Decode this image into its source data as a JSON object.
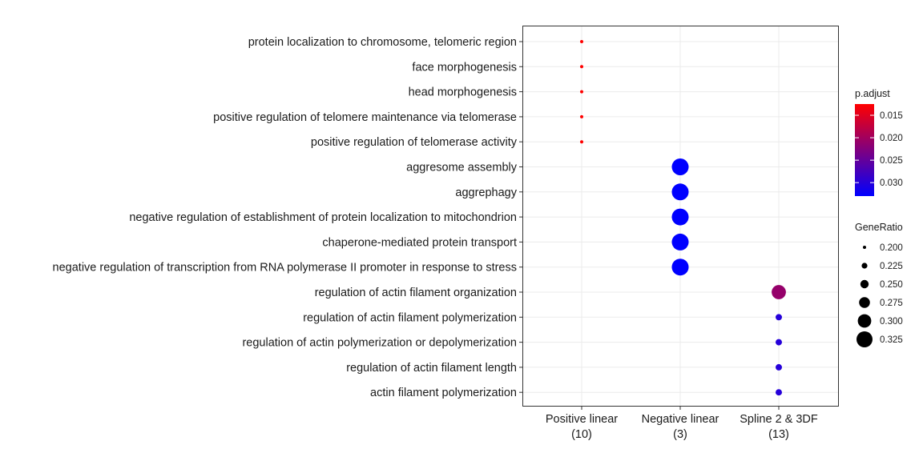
{
  "chart_data": {
    "type": "scatter",
    "title": "",
    "xlabel": "",
    "ylabel": "",
    "x_categories": [
      {
        "line1": "Positive linear",
        "line2": "(10)"
      },
      {
        "line1": "Negative linear",
        "line2": "(3)"
      },
      {
        "line1": "Spline 2 & 3DF",
        "line2": "(13)"
      }
    ],
    "y_categories": [
      "protein localization to chromosome, telomeric region",
      "face morphogenesis",
      "head morphogenesis",
      "positive regulation of telomere maintenance via telomerase",
      "positive regulation of telomerase activity",
      "aggresome assembly",
      "aggrephagy",
      "negative regulation of establishment of protein localization to mitochondrion",
      "chaperone-mediated protein transport",
      "negative regulation of transcription from RNA polymerase II promoter in response to stress",
      "regulation of actin filament organization",
      "regulation of actin filament polymerization",
      "regulation of actin polymerization or depolymerization",
      "regulation of actin filament length",
      "actin filament polymerization"
    ],
    "points": [
      {
        "x": 0,
        "y": 0,
        "gene_ratio": 0.2,
        "p_adjust": 0.0125
      },
      {
        "x": 0,
        "y": 1,
        "gene_ratio": 0.2,
        "p_adjust": 0.0125
      },
      {
        "x": 0,
        "y": 2,
        "gene_ratio": 0.2,
        "p_adjust": 0.0125
      },
      {
        "x": 0,
        "y": 3,
        "gene_ratio": 0.2,
        "p_adjust": 0.0125
      },
      {
        "x": 0,
        "y": 4,
        "gene_ratio": 0.2,
        "p_adjust": 0.0125
      },
      {
        "x": 1,
        "y": 5,
        "gene_ratio": 0.333,
        "p_adjust": 0.033
      },
      {
        "x": 1,
        "y": 6,
        "gene_ratio": 0.333,
        "p_adjust": 0.033
      },
      {
        "x": 1,
        "y": 7,
        "gene_ratio": 0.333,
        "p_adjust": 0.033
      },
      {
        "x": 1,
        "y": 8,
        "gene_ratio": 0.333,
        "p_adjust": 0.033
      },
      {
        "x": 1,
        "y": 9,
        "gene_ratio": 0.333,
        "p_adjust": 0.033
      },
      {
        "x": 2,
        "y": 10,
        "gene_ratio": 0.308,
        "p_adjust": 0.021
      },
      {
        "x": 2,
        "y": 11,
        "gene_ratio": 0.231,
        "p_adjust": 0.03
      },
      {
        "x": 2,
        "y": 12,
        "gene_ratio": 0.231,
        "p_adjust": 0.03
      },
      {
        "x": 2,
        "y": 13,
        "gene_ratio": 0.231,
        "p_adjust": 0.03
      },
      {
        "x": 2,
        "y": 14,
        "gene_ratio": 0.231,
        "p_adjust": 0.03
      }
    ],
    "size_legend": {
      "title": "GeneRatio",
      "values": [
        0.2,
        0.225,
        0.25,
        0.275,
        0.3,
        0.325
      ],
      "labels": [
        "0.200",
        "0.225",
        "0.250",
        "0.275",
        "0.300",
        "0.325"
      ]
    },
    "color_legend": {
      "title": "p.adjust",
      "range": [
        0.0125,
        0.033
      ],
      "ticks": [
        0.015,
        0.02,
        0.025,
        0.03
      ],
      "labels": [
        "0.015",
        "0.020",
        "0.025",
        "0.030"
      ],
      "low_color": "#ff0000",
      "high_color": "#0000ff"
    },
    "grid": true,
    "legend_position": "right",
    "panel_border_color": "#333333",
    "grid_color": "#ebebeb"
  }
}
